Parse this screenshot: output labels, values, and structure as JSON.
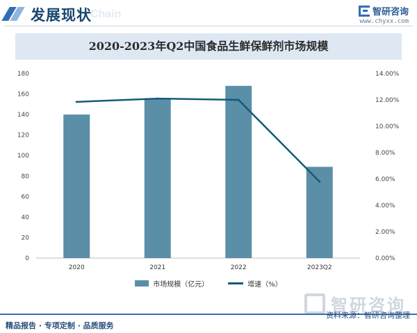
{
  "header": {
    "section_title": "发展现状",
    "ghost_text": "Chain",
    "brand_name": "智研咨询",
    "brand_url": "www.chyxx.com"
  },
  "chart_data": {
    "type": "bar",
    "title": "2020-2023年Q2中国食品生鲜保鲜剂市场规模",
    "categories": [
      "2020",
      "2021",
      "2022",
      "2023Q2"
    ],
    "y_ticks": [
      "0",
      "20",
      "40",
      "60",
      "80",
      "100",
      "120",
      "140",
      "160",
      "180"
    ],
    "y2_ticks": [
      "0.00%",
      "2.00%",
      "4.00%",
      "6.00%",
      "8.00%",
      "10.00%",
      "12.00%",
      "14.00%"
    ],
    "ylim": [
      0,
      180
    ],
    "y2lim": [
      0,
      14
    ],
    "series": [
      {
        "name": "市场规模（亿元）",
        "type": "bar",
        "axis": "left",
        "values": [
          140,
          156,
          168,
          89
        ],
        "color": "#5b8fa8"
      },
      {
        "name": "增速（%）",
        "type": "line",
        "axis": "right",
        "values": [
          11.85,
          12.1,
          12.0,
          5.8
        ],
        "color": "#145a7c"
      }
    ],
    "legend": [
      "市场规模（亿元）",
      "增速（%）"
    ],
    "legend_position": "bottom",
    "grid": false
  },
  "watermark": {
    "brand": "智研咨询"
  },
  "footer": {
    "left": "精品报告 · 专项定制 · 品质服务",
    "right": "资料来源：智研咨询整理"
  }
}
